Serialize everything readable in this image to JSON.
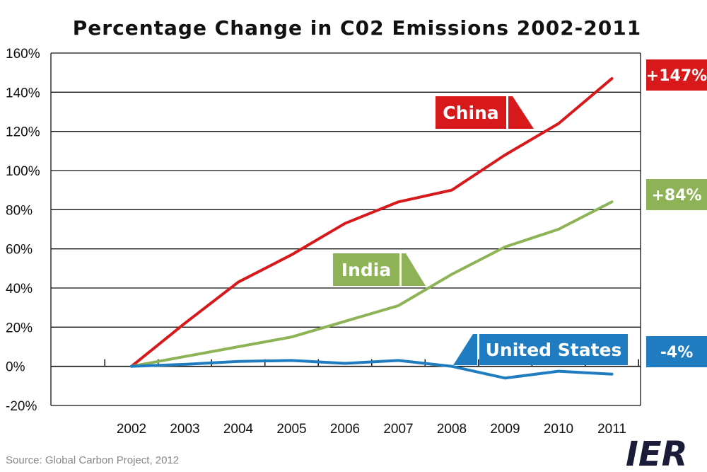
{
  "chart_data": {
    "type": "line",
    "title": "Percentage Change in C02 Emissions 2002-2011",
    "x": [
      "2002",
      "2003",
      "2004",
      "2005",
      "2006",
      "2007",
      "2008",
      "2009",
      "2010",
      "2011"
    ],
    "yticks": [
      "160%",
      "140%",
      "120%",
      "100%",
      "80%",
      "60%",
      "40%",
      "20%",
      "0%",
      "-20%"
    ],
    "ylim": [
      -20,
      160
    ],
    "grid": true,
    "series": [
      {
        "name": "China",
        "color": "#d7191c",
        "final_label": "+147%",
        "values": [
          0,
          22,
          43,
          57,
          73,
          84,
          90,
          108,
          124,
          147
        ]
      },
      {
        "name": "India",
        "color": "#8db356",
        "final_label": "+84%",
        "values": [
          0,
          5,
          10,
          15,
          23,
          31,
          47,
          61,
          70,
          84
        ]
      },
      {
        "name": "United States",
        "color": "#1f7cc1",
        "final_label": "-4%",
        "values": [
          0,
          1,
          2.5,
          3,
          1.5,
          3,
          0,
          -6,
          -2.5,
          -4
        ]
      }
    ]
  },
  "source": "Source: Global Carbon Project, 2012",
  "logo": "IER"
}
